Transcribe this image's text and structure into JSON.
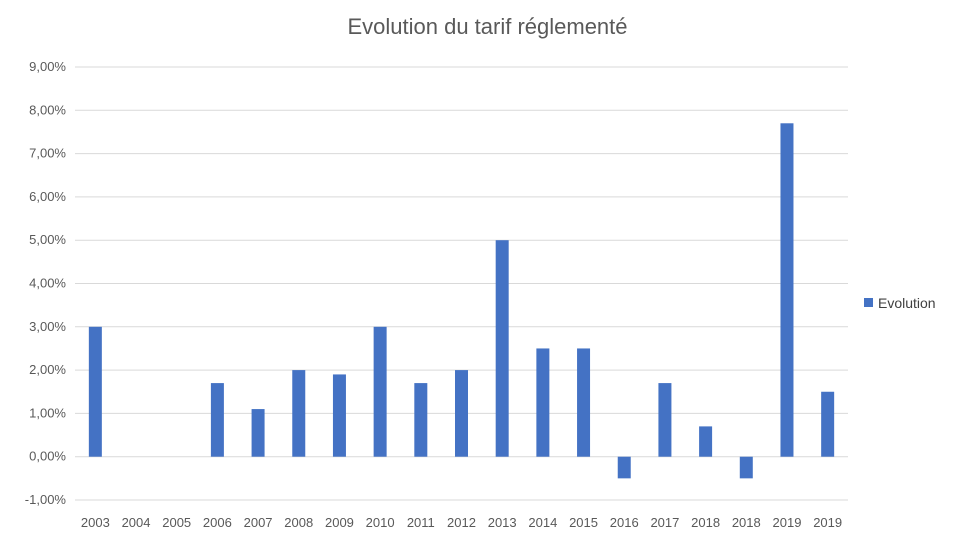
{
  "chart_data": {
    "type": "bar",
    "title": "Evolution du tarif réglementé",
    "xlabel": "",
    "ylabel": "",
    "categories": [
      "2003",
      "2004",
      "2005",
      "2006",
      "2007",
      "2008",
      "2009",
      "2010",
      "2011",
      "2012",
      "2013",
      "2014",
      "2015",
      "2016",
      "2017",
      "2018",
      "2018",
      "2019",
      "2019"
    ],
    "series": [
      {
        "name": "Evolution",
        "color": "#4472C4",
        "values": [
          0.03,
          0,
          0,
          0.017,
          0.011,
          0.02,
          0.019,
          0.03,
          0.017,
          0.02,
          0.05,
          0.025,
          0.025,
          -0.005,
          0.017,
          0.007,
          -0.005,
          0.077,
          0.015
        ]
      }
    ],
    "ylim": [
      -0.01,
      0.09
    ],
    "y_ticks": [
      "-1,00%",
      "0,00%",
      "1,00%",
      "2,00%",
      "3,00%",
      "4,00%",
      "5,00%",
      "6,00%",
      "7,00%",
      "8,00%",
      "9,00%"
    ],
    "y_tick_values": [
      -0.01,
      0,
      0.01,
      0.02,
      0.03,
      0.04,
      0.05,
      0.06,
      0.07,
      0.08,
      0.09
    ],
    "grid": true,
    "legend_position": "right"
  }
}
